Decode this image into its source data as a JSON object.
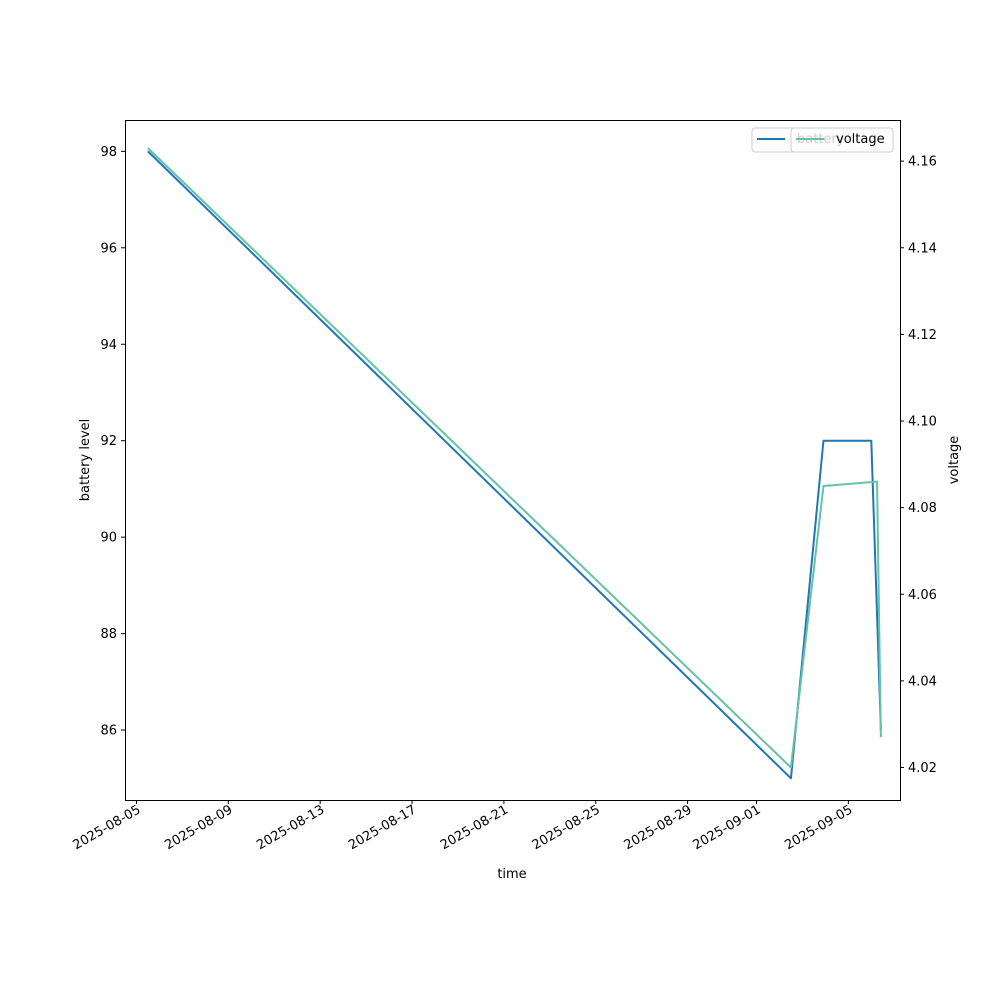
{
  "chart_data": {
    "type": "line",
    "xlabel": "time",
    "ylabel_left": "battery level",
    "ylabel_right": "voltage",
    "x_ticks": [
      "2025-08-05",
      "2025-08-09",
      "2025-08-13",
      "2025-08-17",
      "2025-08-21",
      "2025-08-25",
      "2025-08-29",
      "2025-09-01",
      "2025-09-05"
    ],
    "y_left_ticks": [
      "86",
      "88",
      "90",
      "92",
      "94",
      "96",
      "98"
    ],
    "y_right_ticks": [
      "4.02",
      "4.04",
      "4.06",
      "4.08",
      "4.10",
      "4.12",
      "4.14",
      "4.16"
    ],
    "xlim": [
      "2025-08-04T12:00",
      "2025-09-07T06:00"
    ],
    "ylim_left": [
      84.55,
      98.65
    ],
    "ylim_right": [
      4.0125,
      4.1695
    ],
    "grid": false,
    "legends": [
      {
        "placement": "upper-right",
        "entries": [
          "battery"
        ]
      },
      {
        "placement": "upper-right",
        "entries": [
          "voltage"
        ]
      }
    ],
    "series": [
      {
        "name": "battery",
        "axis": "left",
        "color": "#1f77b4",
        "points": [
          {
            "x": "2025-08-05T12:00",
            "y": 98
          },
          {
            "x": "2025-09-02T12:00",
            "y": 85
          },
          {
            "x": "2025-09-03T22:00",
            "y": 92
          },
          {
            "x": "2025-09-06T00:00",
            "y": 92
          },
          {
            "x": "2025-09-06T10:00",
            "y": 86
          }
        ]
      },
      {
        "name": "voltage",
        "axis": "right",
        "color": "#66c2a5",
        "points": [
          {
            "x": "2025-08-05T12:00",
            "y": 4.163
          },
          {
            "x": "2025-09-02T12:00",
            "y": 4.02
          },
          {
            "x": "2025-09-03T22:00",
            "y": 4.085
          },
          {
            "x": "2025-09-06T06:00",
            "y": 4.086
          },
          {
            "x": "2025-09-06T10:00",
            "y": 4.027
          }
        ]
      }
    ]
  }
}
